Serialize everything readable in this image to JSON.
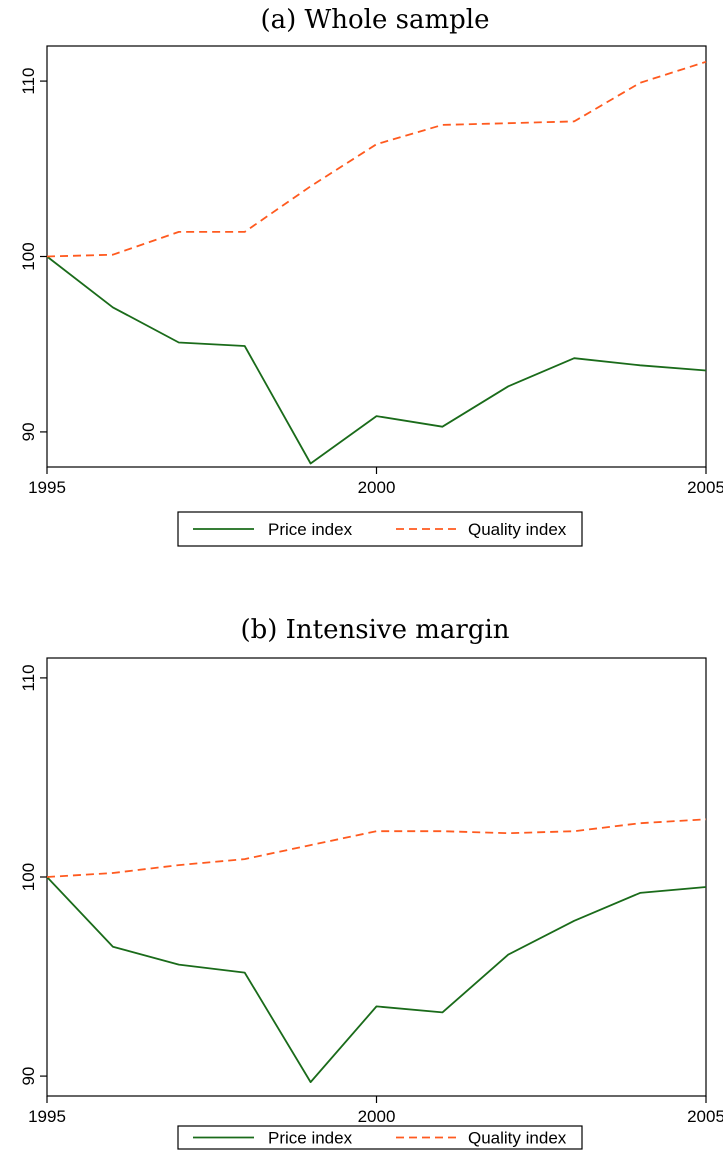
{
  "chart_data": [
    {
      "type": "line",
      "title": "(a) Whole sample",
      "x": [
        1995,
        1996,
        1997,
        1998,
        1999,
        2000,
        2001,
        2002,
        2003,
        2004,
        2005
      ],
      "xlim": [
        1995,
        2005
      ],
      "ylim": [
        88,
        112
      ],
      "xticks": [
        1995,
        2000,
        2005
      ],
      "yticks": [
        90,
        100,
        110
      ],
      "xtick_labels": [
        "1995",
        "2000",
        "2005"
      ],
      "ytick_labels": [
        "90",
        "100",
        "110"
      ],
      "legend_position": "bottom",
      "series": [
        {
          "name": "Price index",
          "color": "#1a6b1a",
          "dash": "solid",
          "values": [
            100.0,
            97.1,
            95.1,
            94.9,
            88.2,
            90.9,
            90.3,
            92.6,
            94.2,
            93.8,
            93.5
          ]
        },
        {
          "name": "Quality index",
          "color": "#ff5a1f",
          "dash": "dashed",
          "values": [
            100.0,
            100.1,
            101.4,
            101.4,
            104.0,
            106.4,
            107.5,
            107.6,
            107.7,
            109.9,
            111.1
          ]
        }
      ]
    },
    {
      "type": "line",
      "title": "(b) Intensive margin",
      "x": [
        1995,
        1996,
        1997,
        1998,
        1999,
        2000,
        2001,
        2002,
        2003,
        2004,
        2005
      ],
      "xlim": [
        1995,
        2005
      ],
      "ylim": [
        89,
        111
      ],
      "xticks": [
        1995,
        2000,
        2005
      ],
      "yticks": [
        90,
        100,
        110
      ],
      "xtick_labels": [
        "1995",
        "2000",
        "2005"
      ],
      "ytick_labels": [
        "90",
        "100",
        "110"
      ],
      "legend_position": "bottom",
      "series": [
        {
          "name": "Price index",
          "color": "#1a6b1a",
          "dash": "solid",
          "values": [
            100.0,
            96.5,
            95.6,
            95.2,
            89.7,
            93.5,
            93.2,
            96.1,
            97.8,
            99.2,
            99.5
          ]
        },
        {
          "name": "Quality index",
          "color": "#ff5a1f",
          "dash": "dashed",
          "values": [
            100.0,
            100.2,
            100.6,
            100.9,
            101.6,
            102.3,
            102.3,
            102.2,
            102.3,
            102.7,
            102.9
          ]
        }
      ]
    }
  ]
}
